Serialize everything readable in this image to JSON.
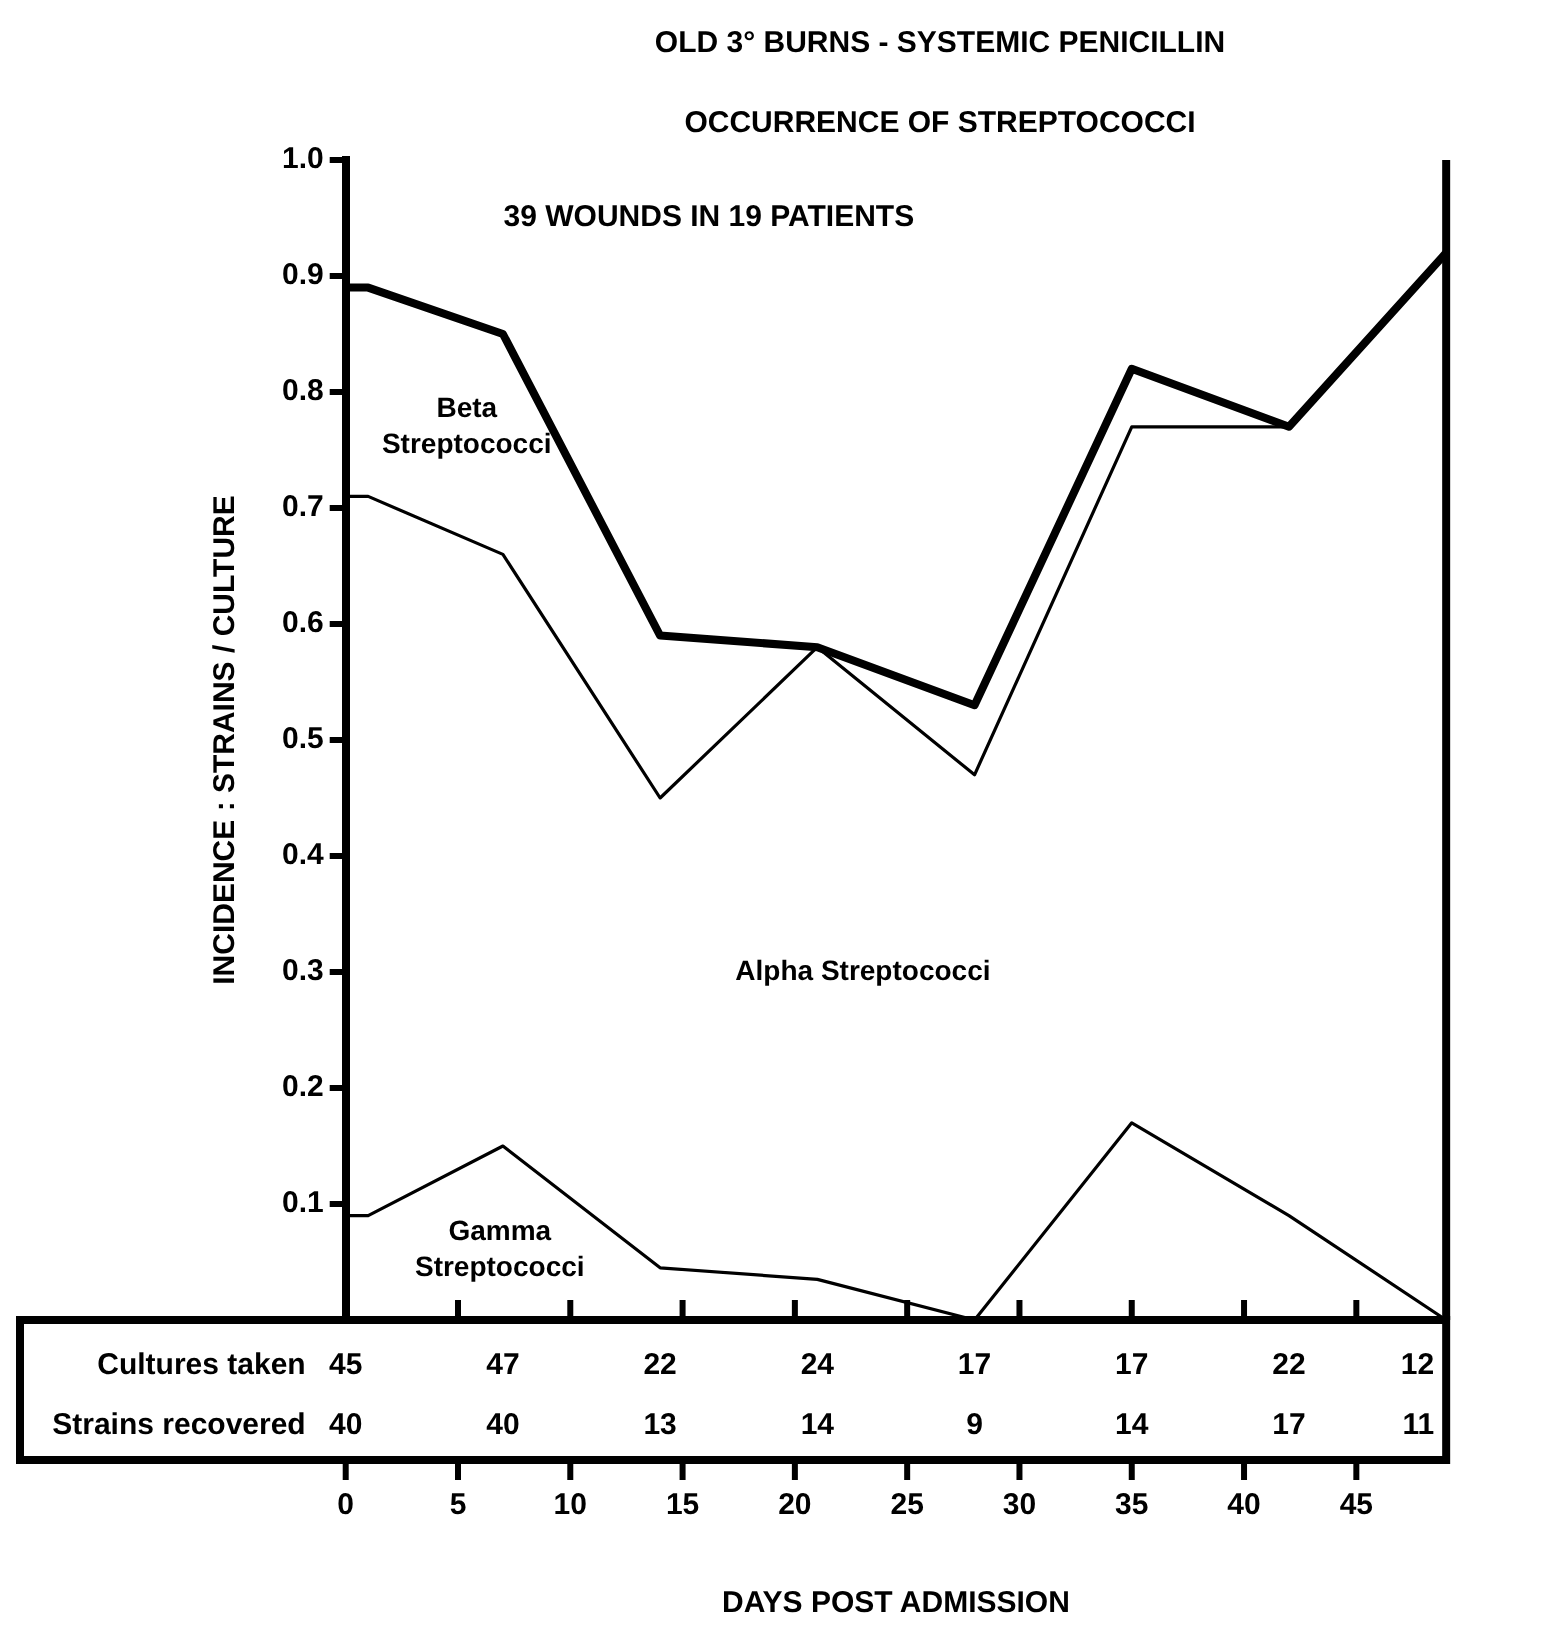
{
  "chart_data": {
    "type": "line",
    "title": "OLD 3° BURNS - SYSTEMIC PENICILLIN",
    "subtitle": "OCCURRENCE OF STREPTOCOCCI",
    "xlabel": "DAYS POST ADMISSION",
    "ylabel": "INCIDENCE : STRAINS / CULTURE",
    "x": [
      0,
      1,
      7,
      14,
      21,
      28,
      35,
      42,
      49
    ],
    "series": [
      {
        "color": "#000000",
        "values": [
          0.89,
          0.89,
          0.85,
          0.59,
          0.58,
          0.53,
          0.82,
          0.77,
          0.92
        ]
      },
      {
        "color": "#000000",
        "values": [
          0.71,
          0.71,
          0.66,
          0.45,
          0.58,
          0.47,
          0.77,
          0.77,
          0.92
        ]
      },
      {
        "color": "#000000",
        "values": [
          0.09,
          0.09,
          0.15,
          0.045,
          0.035,
          0,
          0.17,
          0.09,
          0
        ]
      }
    ],
    "xlim": [
      0,
      49
    ],
    "xticks": [
      0,
      5,
      10,
      15,
      20,
      25,
      30,
      35,
      40,
      45
    ],
    "ylim": [
      0,
      1
    ],
    "yticks": [
      0.1,
      0.2,
      0.3,
      0.4,
      0.5,
      0.6,
      0.7,
      0.8,
      0.9,
      {
        "value": 1,
        "label": "1.0"
      }
    ],
    "annotations": [
      "39 WOUNDS IN 19 PATIENTS",
      "Beta Streptococci",
      "Alpha Streptococci",
      "Gamma Streptococci",
      "Cultures taken 45 47 22 24 17 17 22 12",
      "Strains recovered 40 40 13 14 9 14 17 11"
    ],
    "grid": false,
    "legend": false,
    "marker": "none",
    "line_style": "solid"
  }
}
